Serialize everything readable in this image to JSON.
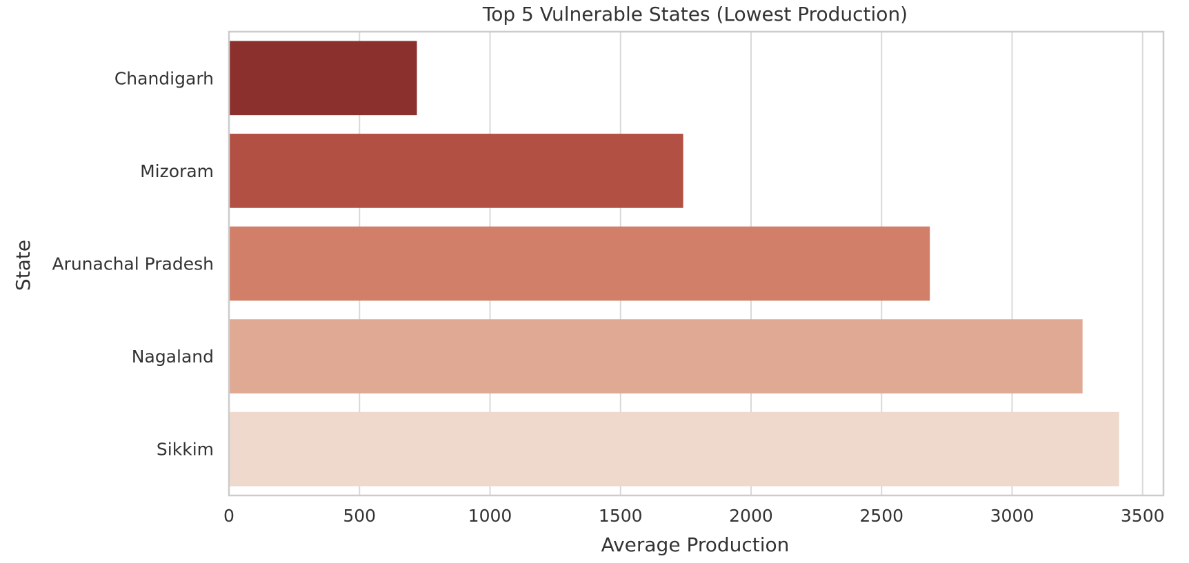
{
  "chart_data": {
    "type": "bar",
    "orientation": "horizontal",
    "title": "Top 5 Vulnerable States (Lowest Production)",
    "xlabel": "Average Production",
    "ylabel": "State",
    "categories": [
      "Chandigarh",
      "Mizoram",
      "Arunachal Pradesh",
      "Nagaland",
      "Sikkim"
    ],
    "values": [
      720,
      1740,
      2685,
      3270,
      3410
    ],
    "colors": [
      "#8b302d",
      "#b35044",
      "#d17f68",
      "#dfa994",
      "#eed9cc"
    ],
    "xlim": [
      0,
      3580
    ],
    "xticks": [
      0,
      500,
      1000,
      1500,
      2000,
      2500,
      3000,
      3500
    ],
    "grid": true,
    "legend": "none"
  }
}
